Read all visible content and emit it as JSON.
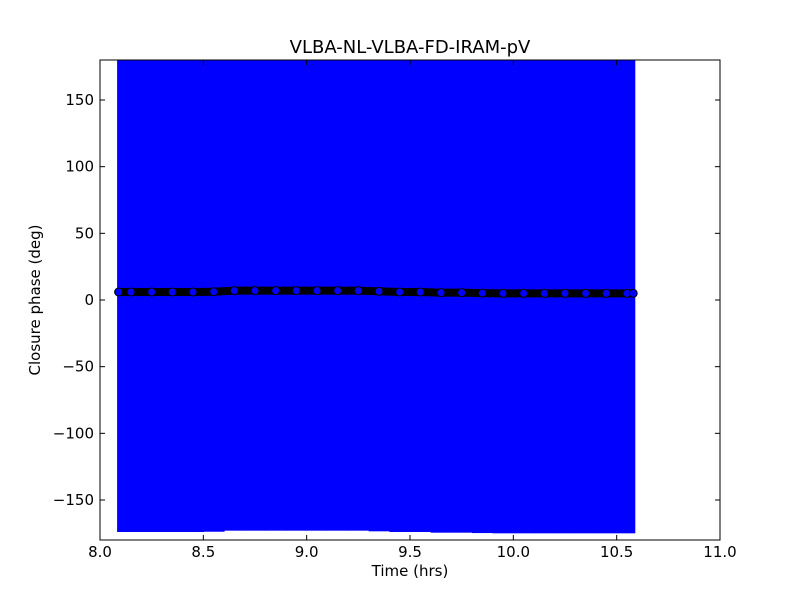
{
  "chart_data": {
    "type": "scatter",
    "title": "VLBA-NL-VLBA-FD-IRAM-pV",
    "xlabel": "Time (hrs)",
    "ylabel": "Closure phase (deg)",
    "xlim": [
      8.0,
      11.0
    ],
    "ylim": [
      -180,
      180
    ],
    "xticks": [
      8.0,
      8.5,
      9.0,
      9.5,
      10.0,
      10.5,
      11.0
    ],
    "xtick_labels": [
      "8.0",
      "8.5",
      "9.0",
      "9.5",
      "10.0",
      "10.5",
      "11.0"
    ],
    "yticks": [
      -150,
      -100,
      -50,
      0,
      50,
      100,
      150
    ],
    "ytick_labels": [
      "−150",
      "−100",
      "−50",
      "0",
      "50",
      "100",
      "150"
    ],
    "grid": false,
    "colors": {
      "error_band": "#0000ff",
      "marker_edge": "#000000",
      "marker_fill": "#0000ff",
      "axes": "#000000"
    },
    "series": [
      {
        "x": [
          8.09,
          8.15,
          8.25,
          8.35,
          8.45,
          8.55,
          8.65,
          8.75,
          8.85,
          8.95,
          9.05,
          9.15,
          9.25,
          9.35,
          9.45,
          9.55,
          9.65,
          9.75,
          9.85,
          9.95,
          10.05,
          10.15,
          10.25,
          10.35,
          10.45,
          10.55,
          10.58
        ],
        "y": [
          6.0,
          6.0,
          6.0,
          6.0,
          6.0,
          6.2,
          7.0,
          7.0,
          7.0,
          7.0,
          7.0,
          7.0,
          7.0,
          6.5,
          6.0,
          6.0,
          5.5,
          5.5,
          5.2,
          5.0,
          5.0,
          5.0,
          5.0,
          5.0,
          5.0,
          5.0,
          5.0
        ],
        "yerr": [
          180,
          180,
          180,
          180,
          180,
          180,
          180,
          180,
          180,
          180,
          180,
          180,
          180,
          180,
          180,
          180,
          180,
          180,
          180,
          180,
          180,
          180,
          180,
          180,
          180,
          180,
          180
        ]
      }
    ]
  }
}
